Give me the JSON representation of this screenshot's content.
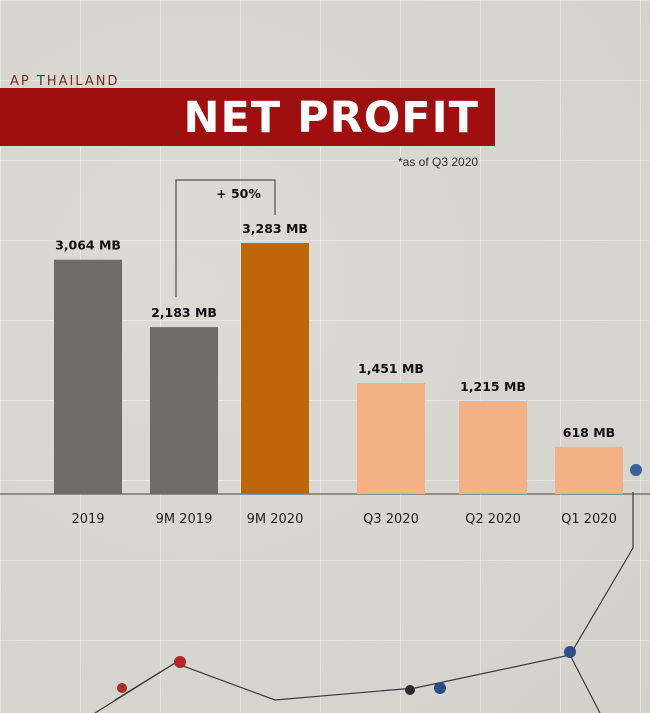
{
  "header": {
    "brand": "AP THAILAND",
    "title": "NET PROFIT",
    "note": "*as of Q3 2020"
  },
  "colors": {
    "title_band": "#a00f10",
    "annual_bars": "#6f6b6b",
    "highlight_bar": "#bf6708",
    "quarter_bars": "#f3b185"
  },
  "chart_data": {
    "type": "bar",
    "title": "NET PROFIT",
    "xlabel": "",
    "ylabel": "",
    "unit": "MB",
    "categories": [
      "2019",
      "9M 2019",
      "9M 2020",
      "Q3 2020",
      "Q2 2020",
      "Q1 2020"
    ],
    "values": [
      3064,
      2183,
      3283,
      1451,
      1215,
      618
    ],
    "value_labels": [
      "3,064 MB",
      "2,183 MB",
      "3,283 MB",
      "1,451 MB",
      "1,215 MB",
      "618 MB"
    ],
    "bar_groups": [
      "annual",
      "annual",
      "highlight",
      "quarter",
      "quarter",
      "quarter"
    ],
    "ylim": [
      0,
      3283
    ],
    "grid": false,
    "legend": "none",
    "annotations": [
      {
        "label": "+ 50%",
        "from_category": "9M 2019",
        "to_category": "9M 2020"
      }
    ]
  }
}
